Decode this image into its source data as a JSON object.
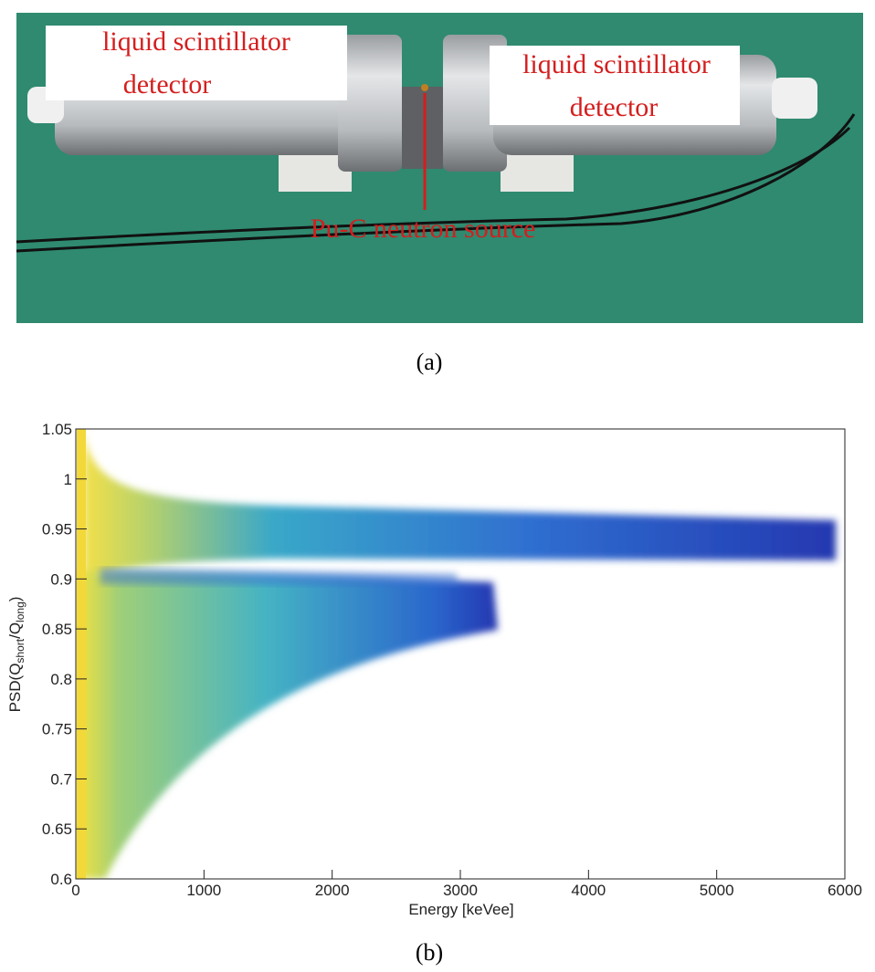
{
  "figure_a": {
    "labels": [
      {
        "lines": [
          "liquid scintillator",
          "detector"
        ]
      },
      {
        "lines": [
          "liquid scintillator",
          "detector"
        ]
      },
      {
        "lines": [
          "Pu-C neutron source"
        ]
      }
    ],
    "caption": "(a)"
  },
  "chart_data": {
    "type": "histogram2d",
    "xlabel": "Energy [keVee]",
    "ylabel": {
      "main": "PSD(Q",
      "sub1": "short",
      "mid": "/Q",
      "sub2": "long",
      "end": ")"
    },
    "xlim": [
      0,
      6000
    ],
    "xticks": [
      0,
      1000,
      2000,
      3000,
      4000,
      5000,
      6000
    ],
    "ylim": [
      0.6,
      1.05
    ],
    "yticks": [
      0.6,
      0.65,
      0.7,
      0.75,
      0.8,
      0.85,
      0.9,
      0.95,
      1,
      1.05
    ]
  },
  "caption_b": "(b)"
}
